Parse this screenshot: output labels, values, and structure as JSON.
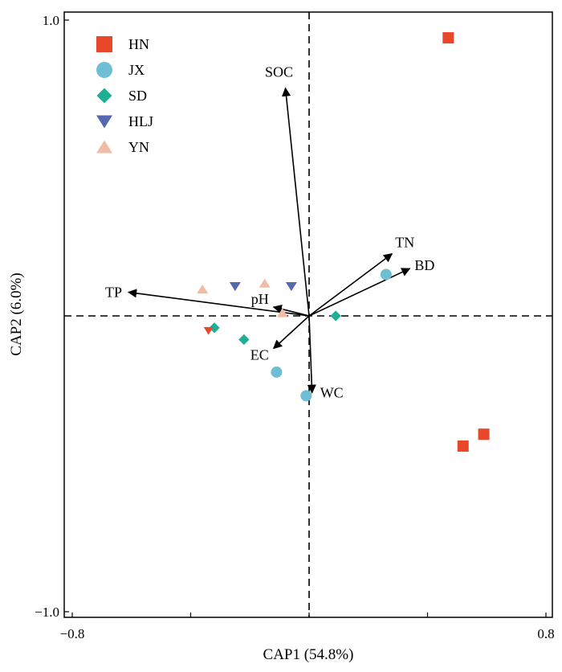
{
  "chart_data": {
    "type": "scatter",
    "xlabel": "CAP1 (54.8%)",
    "ylabel": "CAP2 (6.0%)",
    "xlim": [
      -0.8,
      0.8
    ],
    "ylim": [
      -1.0,
      1.0
    ],
    "x_tick_labels": [
      "−0.8",
      "0.8"
    ],
    "y_tick_labels": [
      "1.0",
      "−1.0"
    ],
    "grid": false,
    "legend_position": "top-left",
    "series": [
      {
        "name": "HN",
        "marker": "square",
        "color": "#E8472A",
        "points": [
          [
            0.47,
            0.94
          ],
          [
            0.52,
            -0.44
          ],
          [
            0.59,
            -0.4
          ]
        ]
      },
      {
        "name": "JX",
        "marker": "circle",
        "color": "#6FBFD4",
        "points": [
          [
            0.26,
            0.14
          ],
          [
            -0.11,
            -0.19
          ],
          [
            -0.01,
            -0.27
          ]
        ]
      },
      {
        "name": "SD",
        "marker": "diamond",
        "color": "#1FAF94",
        "points": [
          [
            -0.32,
            -0.04
          ],
          [
            -0.22,
            -0.08
          ],
          [
            0.09,
            0.0
          ]
        ]
      },
      {
        "name": "HLJ",
        "marker": "triangle-down",
        "color": "#5468B0",
        "points": [
          [
            -0.25,
            0.1
          ],
          [
            -0.06,
            0.1
          ]
        ]
      },
      {
        "name": "YN",
        "marker": "triangle-up",
        "color": "#F0BCA6",
        "points": [
          [
            -0.36,
            0.09
          ],
          [
            -0.15,
            0.11
          ],
          [
            -0.09,
            0.01
          ]
        ]
      }
    ],
    "extra_markers": [
      {
        "marker": "triangle-down",
        "color": "#E8472A",
        "point": [
          -0.34,
          -0.05
        ]
      }
    ],
    "arrows": [
      {
        "label": "SOC",
        "x": -0.08,
        "y": 0.77
      },
      {
        "label": "TN",
        "x": 0.28,
        "y": 0.21
      },
      {
        "label": "BD",
        "x": 0.34,
        "y": 0.16
      },
      {
        "label": "TP",
        "x": -0.61,
        "y": 0.08
      },
      {
        "label": "pH",
        "x": -0.12,
        "y": 0.03
      },
      {
        "label": "EC",
        "x": -0.12,
        "y": -0.11
      },
      {
        "label": "WC",
        "x": 0.01,
        "y": -0.26
      }
    ]
  }
}
